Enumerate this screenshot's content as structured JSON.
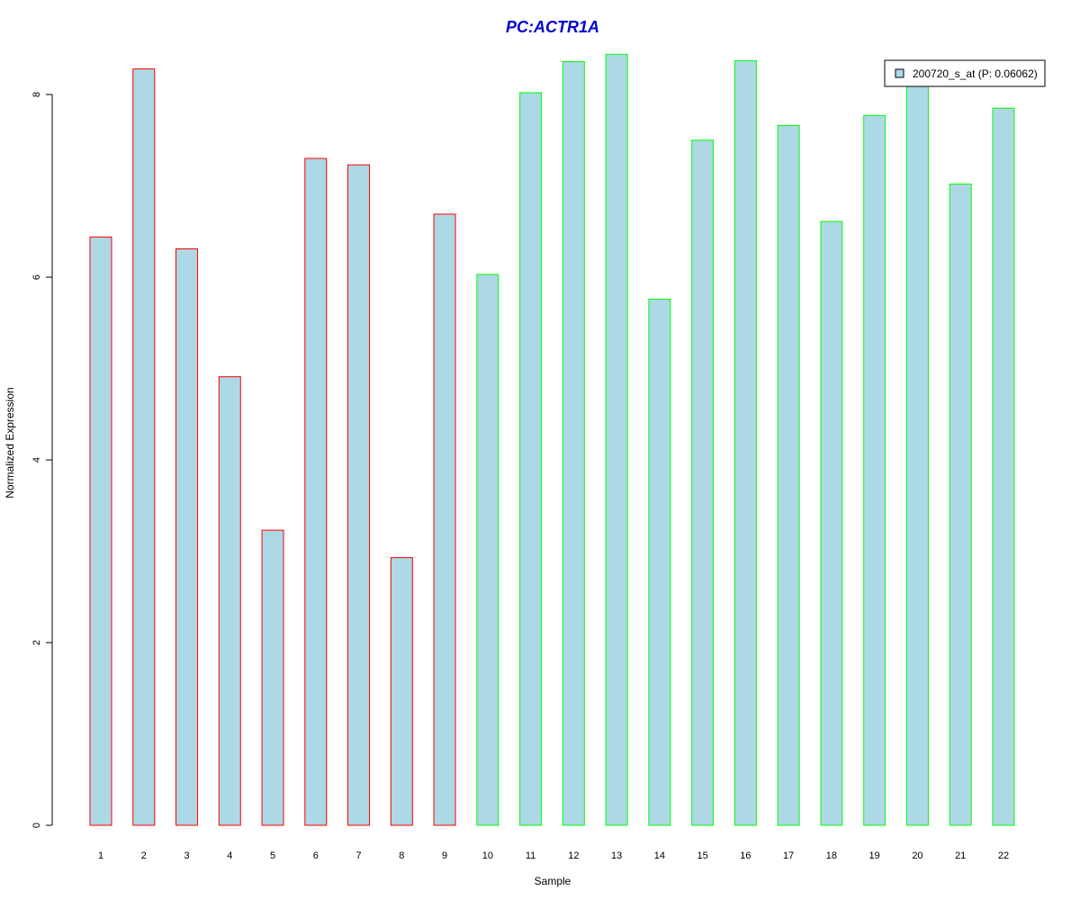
{
  "colors": {
    "bar_fill": "#add8e6",
    "group_a_border": "#ff0000",
    "group_b_border": "#00ff00",
    "title": "#0000cd"
  },
  "chart_data": {
    "type": "bar",
    "title": "PC:ACTR1A",
    "xlabel": "Sample",
    "ylabel": "Normalized Expression",
    "ylim": [
      0,
      8.4
    ],
    "yticks": [
      0,
      2,
      4,
      6,
      8
    ],
    "grid": false,
    "legend_position": "top-right",
    "categories": [
      "1",
      "2",
      "3",
      "4",
      "5",
      "6",
      "7",
      "8",
      "9",
      "10",
      "11",
      "12",
      "13",
      "14",
      "15",
      "16",
      "17",
      "18",
      "19",
      "20",
      "21",
      "22"
    ],
    "series": [
      {
        "name": "200720_s_at (P: 0.06062)",
        "values": [
          6.44,
          8.28,
          6.31,
          4.91,
          3.23,
          7.3,
          7.23,
          2.93,
          6.69,
          6.03,
          8.02,
          8.36,
          8.44,
          5.76,
          7.5,
          8.37,
          7.66,
          6.61,
          7.77,
          8.12,
          7.02,
          7.85
        ]
      }
    ],
    "border_groups": [
      "a",
      "a",
      "a",
      "a",
      "a",
      "a",
      "a",
      "a",
      "a",
      "b",
      "b",
      "b",
      "b",
      "b",
      "b",
      "b",
      "b",
      "b",
      "b",
      "b",
      "b",
      "b"
    ]
  }
}
